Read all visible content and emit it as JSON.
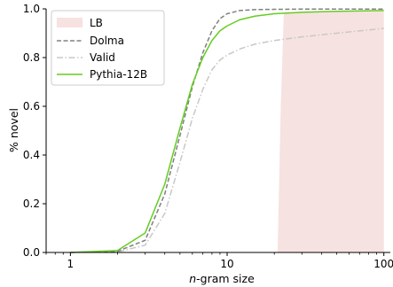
{
  "chart_data": {
    "type": "line",
    "xlabel_italic": "n",
    "xlabel_rest": "-gram size",
    "ylabel": "% novel",
    "xscale": "log",
    "xlim": [
      0.7,
      110
    ],
    "ylim": [
      0,
      1.0
    ],
    "xticks": [
      1,
      10,
      100
    ],
    "xtick_labels": [
      "1",
      "10",
      "100"
    ],
    "yticks": [
      0.0,
      0.2,
      0.4,
      0.6,
      0.8,
      1.0
    ],
    "ytick_labels": [
      "0.0",
      "0.2",
      "0.4",
      "0.6",
      "0.8",
      "1.0"
    ],
    "grid": false,
    "legend_position": "top-left",
    "series": [
      {
        "name": "Dolma",
        "style": "dashed",
        "color": "#808080",
        "x": [
          1,
          2,
          3,
          4,
          5,
          6,
          7,
          8,
          9,
          10,
          12,
          15,
          20,
          30,
          50,
          100
        ],
        "y": [
          0.0,
          0.005,
          0.05,
          0.24,
          0.48,
          0.68,
          0.82,
          0.91,
          0.96,
          0.98,
          0.993,
          0.997,
          0.998,
          0.999,
          0.999,
          0.999
        ]
      },
      {
        "name": "Valid",
        "style": "dashdot",
        "color": "#c8c8c8",
        "x": [
          1,
          2,
          3,
          4,
          5,
          6,
          7,
          8,
          9,
          10,
          12,
          15,
          20,
          30,
          50,
          100
        ],
        "y": [
          0.0,
          0.002,
          0.03,
          0.16,
          0.37,
          0.55,
          0.67,
          0.75,
          0.79,
          0.81,
          0.835,
          0.855,
          0.87,
          0.885,
          0.9,
          0.92
        ]
      },
      {
        "name": "Pythia-12B",
        "style": "solid",
        "color": "#66cc22",
        "x": [
          1,
          2,
          3,
          4,
          5,
          6,
          7,
          8,
          9,
          10,
          12,
          15,
          20,
          30,
          50,
          100
        ],
        "y": [
          0.0,
          0.008,
          0.08,
          0.28,
          0.51,
          0.69,
          0.8,
          0.87,
          0.91,
          0.93,
          0.955,
          0.97,
          0.98,
          0.986,
          0.99,
          0.993
        ]
      }
    ],
    "shaded_regions": [
      {
        "name": "LB",
        "color": "#f6e2e0",
        "x": [
          21,
          22,
          23,
          30,
          50,
          100
        ],
        "y_upper": [
          0.0,
          0.6,
          0.98,
          0.985,
          0.99,
          0.993
        ]
      }
    ]
  }
}
